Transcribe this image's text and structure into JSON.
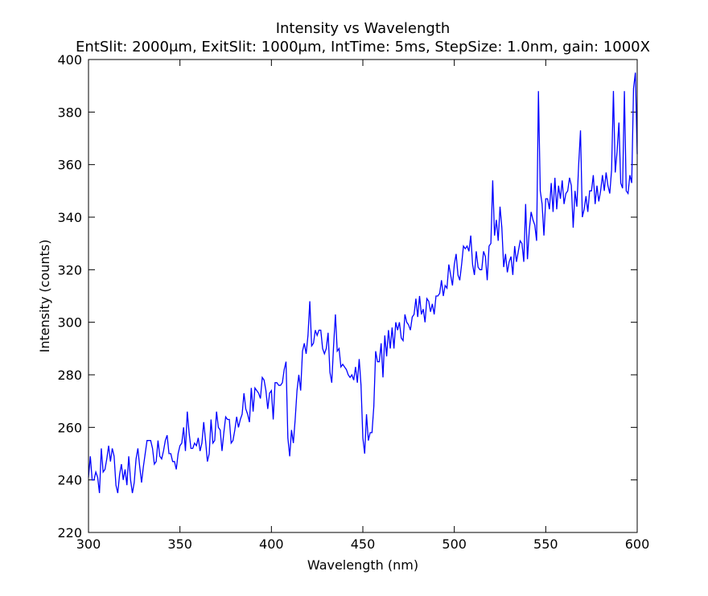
{
  "chart_data": {
    "type": "line",
    "title": "Intensity vs Wavelength",
    "subtitle": "EntSlit: 2000μm, ExitSlit: 1000μm, IntTime: 5ms, StepSize: 1.0nm, gain: 1000X",
    "x_label": "Wavelength (nm)",
    "y_label": "Intensity (counts)",
    "xlim": [
      300,
      600
    ],
    "xticks": [
      300,
      350,
      400,
      450,
      500,
      550,
      600
    ],
    "ylim": [
      220,
      400
    ],
    "yticks": [
      220,
      240,
      260,
      280,
      300,
      320,
      340,
      360,
      380,
      400
    ],
    "x": [
      300,
      301,
      302,
      303,
      304,
      305,
      306,
      307,
      308,
      309,
      310,
      311,
      312,
      313,
      314,
      315,
      316,
      317,
      318,
      319,
      320,
      321,
      322,
      323,
      324,
      325,
      326,
      327,
      328,
      329,
      330,
      331,
      332,
      333,
      334,
      335,
      336,
      337,
      338,
      339,
      340,
      341,
      342,
      343,
      344,
      345,
      346,
      347,
      348,
      349,
      350,
      351,
      352,
      353,
      354,
      355,
      356,
      357,
      358,
      359,
      360,
      361,
      362,
      363,
      364,
      365,
      366,
      367,
      368,
      369,
      370,
      371,
      372,
      373,
      374,
      375,
      376,
      377,
      378,
      379,
      380,
      381,
      382,
      383,
      384,
      385,
      386,
      387,
      388,
      389,
      390,
      391,
      392,
      393,
      394,
      395,
      396,
      397,
      398,
      399,
      400,
      401,
      402,
      403,
      404,
      405,
      406,
      407,
      408,
      409,
      410,
      411,
      412,
      413,
      414,
      415,
      416,
      417,
      418,
      419,
      420,
      421,
      422,
      423,
      424,
      425,
      426,
      427,
      428,
      429,
      430,
      431,
      432,
      433,
      434,
      435,
      436,
      437,
      438,
      439,
      440,
      441,
      442,
      443,
      444,
      445,
      446,
      447,
      448,
      449,
      450,
      451,
      452,
      453,
      454,
      455,
      456,
      457,
      458,
      459,
      460,
      461,
      462,
      463,
      464,
      465,
      466,
      467,
      468,
      469,
      470,
      471,
      472,
      473,
      474,
      475,
      476,
      477,
      478,
      479,
      480,
      481,
      482,
      483,
      484,
      485,
      486,
      487,
      488,
      489,
      490,
      491,
      492,
      493,
      494,
      495,
      496,
      497,
      498,
      499,
      500,
      501,
      502,
      503,
      504,
      505,
      506,
      507,
      508,
      509,
      510,
      511,
      512,
      513,
      514,
      515,
      516,
      517,
      518,
      519,
      520,
      521,
      522,
      523,
      524,
      525,
      526,
      527,
      528,
      529,
      530,
      531,
      532,
      533,
      534,
      535,
      536,
      537,
      538,
      539,
      540,
      541,
      542,
      543,
      544,
      545,
      546,
      547,
      548,
      549,
      550,
      551,
      552,
      553,
      554,
      555,
      556,
      557,
      558,
      559,
      560,
      561,
      562,
      563,
      564,
      565,
      566,
      567,
      568,
      569,
      570,
      571,
      572,
      573,
      574,
      575,
      576,
      577,
      578,
      579,
      580,
      581,
      582,
      583,
      584,
      585,
      586,
      587,
      588,
      589,
      590,
      591,
      592,
      593,
      594,
      595,
      596,
      597,
      598,
      599,
      600
    ],
    "series": [
      {
        "name": "Intensity",
        "color": "#0000ff",
        "values": [
          241,
          249,
          240,
          240,
          243,
          241,
          235,
          252,
          243,
          244,
          248,
          253,
          247,
          252,
          249,
          238,
          235,
          242,
          246,
          240,
          244,
          238,
          249,
          240,
          235,
          239,
          248,
          252,
          245,
          239,
          245,
          250,
          255,
          255,
          255,
          252,
          246,
          247,
          255,
          249,
          248,
          251,
          255,
          257,
          250,
          250,
          247,
          247,
          244,
          250,
          253,
          254,
          260,
          251,
          266,
          258,
          252,
          252,
          254,
          253,
          256,
          251,
          254,
          262,
          255,
          247,
          250,
          263,
          254,
          255,
          266,
          260,
          259,
          251,
          258,
          264,
          263,
          263,
          254,
          255,
          259,
          264,
          260,
          263,
          265,
          273,
          267,
          265,
          262,
          275,
          266,
          275,
          274,
          273,
          271,
          279,
          278,
          274,
          267,
          273,
          274,
          263,
          277,
          277,
          276,
          276,
          277,
          282,
          285,
          256,
          249,
          259,
          254,
          263,
          274,
          280,
          274,
          289,
          292,
          288,
          295,
          308,
          291,
          292,
          297,
          295,
          297,
          297,
          290,
          288,
          290,
          296,
          281,
          277,
          291,
          303,
          289,
          290,
          283,
          284,
          283,
          282,
          280,
          279,
          280,
          278,
          283,
          277,
          286,
          276,
          256,
          250,
          265,
          255,
          258,
          258,
          268,
          289,
          285,
          285,
          292,
          279,
          295,
          287,
          297,
          290,
          298,
          290,
          300,
          297,
          300,
          294,
          293,
          303,
          300,
          299,
          297,
          302,
          303,
          309,
          302,
          310,
          303,
          305,
          300,
          309,
          308,
          304,
          307,
          303,
          310,
          310,
          311,
          316,
          310,
          314,
          313,
          322,
          318,
          314,
          322,
          326,
          318,
          316,
          322,
          329,
          328,
          329,
          327,
          333,
          322,
          318,
          327,
          321,
          320,
          320,
          327,
          325,
          316,
          329,
          330,
          354,
          333,
          339,
          331,
          344,
          336,
          321,
          326,
          319,
          323,
          325,
          318,
          329,
          323,
          327,
          331,
          330,
          323,
          345,
          324,
          335,
          342,
          339,
          337,
          331,
          388,
          350,
          345,
          333,
          347,
          347,
          343,
          353,
          342,
          355,
          343,
          352,
          347,
          354,
          345,
          349,
          350,
          355,
          352,
          336,
          350,
          344,
          360,
          373,
          340,
          343,
          348,
          342,
          350,
          350,
          356,
          345,
          352,
          346,
          350,
          356,
          350,
          357,
          352,
          349,
          358,
          388,
          357,
          365,
          376,
          353,
          351,
          388,
          350,
          349,
          356,
          353,
          389,
          395,
          364
        ]
      }
    ]
  }
}
